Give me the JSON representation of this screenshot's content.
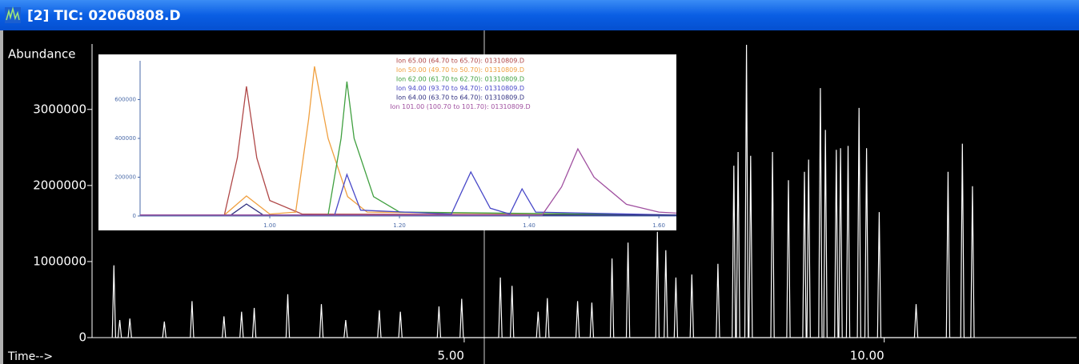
{
  "window": {
    "title": "[2] TIC: 02060808.D"
  },
  "chart_data": [
    {
      "type": "line",
      "y_label": "Abundance",
      "x_label": "Time-->",
      "color": "#ffffff",
      "xlim": [
        0.57,
        12.29
      ],
      "ylim": [
        0,
        3860000
      ],
      "xticks": [
        {
          "value": 5,
          "label": "5.00"
        },
        {
          "value": 10,
          "label": "10.00"
        }
      ],
      "yticks": [
        0,
        1000000,
        2000000,
        3000000
      ],
      "x": [
        0.81,
        0.83,
        0.85,
        0.88,
        0.9,
        0.92,
        1.0,
        1.02,
        1.04,
        1.41,
        1.43,
        1.45,
        1.74,
        1.76,
        1.78,
        2.12,
        2.14,
        2.16,
        2.33,
        2.35,
        2.37,
        2.48,
        2.5,
        2.52,
        2.88,
        2.9,
        2.92,
        3.28,
        3.3,
        3.32,
        3.57,
        3.59,
        3.61,
        3.97,
        3.99,
        4.01,
        4.22,
        4.24,
        4.26,
        4.68,
        4.7,
        4.72,
        4.95,
        4.97,
        4.99,
        5.41,
        5.43,
        5.45,
        5.55,
        5.57,
        5.59,
        5.86,
        5.88,
        5.9,
        5.97,
        5.99,
        6.01,
        6.33,
        6.35,
        6.37,
        6.5,
        6.52,
        6.54,
        6.74,
        6.76,
        6.78,
        6.93,
        6.95,
        6.97,
        7.28,
        7.3,
        7.32,
        7.38,
        7.4,
        7.42,
        7.5,
        7.52,
        7.54,
        7.69,
        7.71,
        7.73,
        8.0,
        8.02,
        8.04,
        8.19,
        8.21,
        8.23,
        8.24,
        8.26,
        8.28,
        8.34,
        8.36,
        8.38,
        8.39,
        8.41,
        8.43,
        8.65,
        8.67,
        8.69,
        8.84,
        8.86,
        8.88,
        9.03,
        9.05,
        9.07,
        9.08,
        9.1,
        9.12,
        9.22,
        9.24,
        9.26,
        9.28,
        9.3,
        9.32,
        9.41,
        9.43,
        9.45,
        9.46,
        9.48,
        9.5,
        9.55,
        9.57,
        9.59,
        9.68,
        9.7,
        9.72,
        9.77,
        9.79,
        9.81,
        9.92,
        9.94,
        9.96,
        10.36,
        10.38,
        10.4,
        10.74,
        10.76,
        10.78,
        10.91,
        10.93,
        10.95,
        11.03,
        11.05,
        11.07
      ],
      "values": [
        0,
        950000,
        0,
        0,
        230000,
        0,
        0,
        250000,
        0,
        0,
        210000,
        0,
        0,
        480000,
        0,
        0,
        280000,
        0,
        0,
        340000,
        0,
        0,
        390000,
        0,
        0,
        570000,
        0,
        0,
        440000,
        0,
        0,
        230000,
        0,
        0,
        360000,
        0,
        0,
        340000,
        0,
        0,
        410000,
        0,
        0,
        510000,
        0,
        0,
        790000,
        0,
        0,
        680000,
        0,
        0,
        340000,
        0,
        0,
        520000,
        0,
        0,
        480000,
        0,
        0,
        460000,
        0,
        0,
        1040000,
        0,
        0,
        1250000,
        0,
        0,
        1390000,
        0,
        0,
        1150000,
        0,
        0,
        790000,
        0,
        0,
        830000,
        0,
        0,
        970000,
        0,
        0,
        2260000,
        0,
        0,
        2440000,
        0,
        0,
        3850000,
        0,
        0,
        2390000,
        0,
        0,
        2440000,
        0,
        0,
        2070000,
        0,
        0,
        2180000,
        0,
        0,
        2340000,
        0,
        0,
        3280000,
        0,
        0,
        2730000,
        0,
        0,
        2470000,
        0,
        0,
        2490000,
        0,
        0,
        2520000,
        0,
        0,
        3020000,
        0,
        0,
        2490000,
        0,
        0,
        1650000,
        0,
        0,
        440000,
        0,
        0,
        2180000,
        0,
        0,
        2550000,
        0,
        0,
        1990000,
        0
      ]
    },
    {
      "type": "line",
      "xlim": [
        0.8,
        1.627
      ],
      "ylim": [
        0,
        800000
      ],
      "xticks": [
        {
          "value": 1,
          "label": "1.00"
        },
        {
          "value": 1.2,
          "label": "1.20"
        },
        {
          "value": 1.4,
          "label": "1.40"
        },
        {
          "value": 1.6,
          "label": "1.60"
        }
      ],
      "yticks": [
        0,
        200000,
        400000,
        600000
      ],
      "series": [
        {
          "name": "Ion 65.00 (64.70 to 65.70): 01310809.D",
          "color": "#b04848",
          "x": [
            0.8,
            0.93,
            0.95,
            0.964,
            0.98,
            1.0,
            1.05,
            1.627
          ],
          "values": [
            5000,
            5000,
            300000,
            668000,
            300000,
            80000,
            10000,
            5000
          ]
        },
        {
          "name": "Ion 50.00 (49.70 to 50.70): 01310809.D",
          "color": "#f0a040",
          "x": [
            0.8,
            0.93,
            0.964,
            1.0,
            1.04,
            1.06,
            1.069,
            1.09,
            1.12,
            1.15,
            1.627
          ],
          "values": [
            5000,
            5000,
            103000,
            10000,
            20000,
            500000,
            771000,
            400000,
            100000,
            20000,
            5000
          ]
        },
        {
          "name": "Ion 62.00 (61.70 to 62.70): 01310809.D",
          "color": "#40a040",
          "x": [
            0.8,
            1.09,
            1.11,
            1.119,
            1.13,
            1.16,
            1.2,
            1.627
          ],
          "values": [
            5000,
            5000,
            400000,
            693000,
            400000,
            100000,
            20000,
            5000
          ]
        },
        {
          "name": "Ion 94.00 (93.70 to 94.70): 01310809.D",
          "color": "#4848c8",
          "x": [
            0.8,
            1.1,
            1.119,
            1.14,
            1.28,
            1.31,
            1.34,
            1.37,
            1.389,
            1.41,
            1.627
          ],
          "values": [
            5000,
            5000,
            214000,
            30000,
            10000,
            227000,
            40000,
            10000,
            140000,
            20000,
            5000
          ]
        },
        {
          "name": "Ion 64.00 (63.70 to 64.70): 01310809.D",
          "color": "#303080",
          "x": [
            0.8,
            0.94,
            0.964,
            0.99,
            1.627
          ],
          "values": [
            5000,
            5000,
            62000,
            5000,
            5000
          ]
        },
        {
          "name": "Ion 101.00 (100.70 to 101.70): 01310809.D",
          "color": "#a050a0",
          "x": [
            0.8,
            1.42,
            1.45,
            1.475,
            1.5,
            1.55,
            1.6,
            1.627
          ],
          "values": [
            5000,
            5000,
            150000,
            346000,
            200000,
            60000,
            20000,
            15000
          ]
        }
      ]
    }
  ]
}
